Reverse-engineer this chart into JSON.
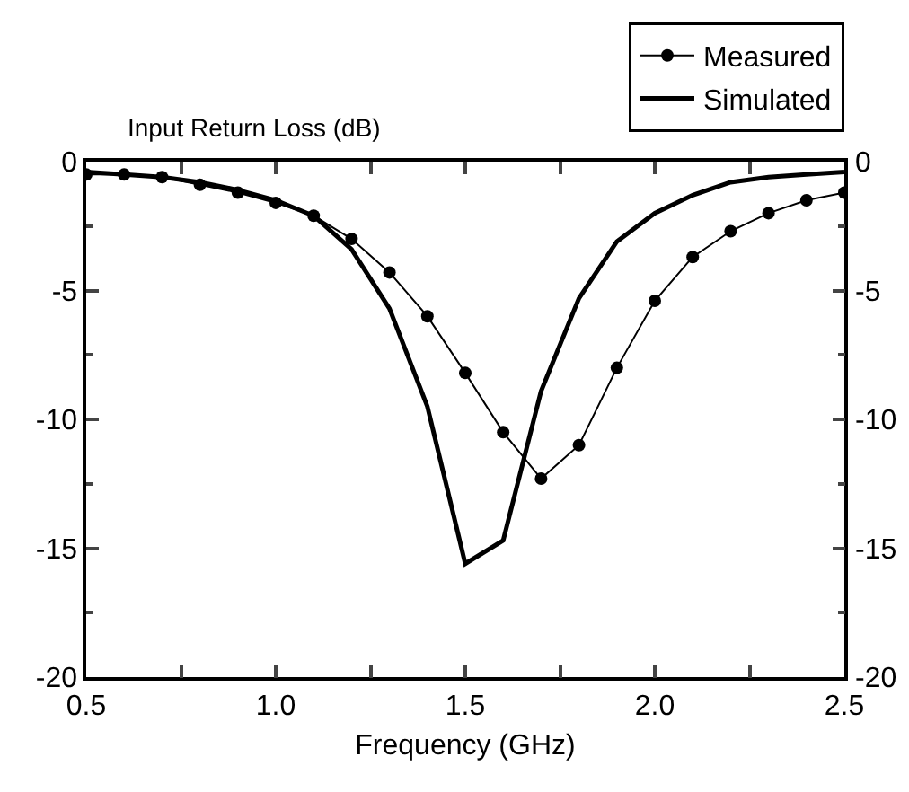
{
  "chart_data": {
    "type": "line",
    "ylabel": "Input Return Loss (dB)",
    "xlabel": "Frequency (GHz)",
    "x": [
      0.5,
      0.6,
      0.7,
      0.8,
      0.9,
      1.0,
      1.1,
      1.2,
      1.3,
      1.4,
      1.5,
      1.6,
      1.7,
      1.8,
      1.9,
      2.0,
      2.1,
      2.2,
      2.3,
      2.4,
      2.5
    ],
    "series": [
      {
        "name": "Measured",
        "color": "#000000",
        "marker": "circle",
        "line_style": "solid",
        "values": [
          -0.5,
          -0.5,
          -0.6,
          -0.9,
          -1.2,
          -1.6,
          -2.1,
          -3.0,
          -4.3,
          -6.0,
          -8.2,
          -10.5,
          -12.3,
          -11.0,
          -8.0,
          -5.4,
          -3.7,
          -2.7,
          -2.0,
          -1.5,
          -1.2
        ]
      },
      {
        "name": "Simulated",
        "color": "#000000",
        "marker": "none",
        "line_style": "solid",
        "values": [
          -0.4,
          -0.5,
          -0.6,
          -0.8,
          -1.1,
          -1.5,
          -2.1,
          -3.4,
          -5.7,
          -9.5,
          -15.6,
          -14.7,
          -8.9,
          -5.3,
          -3.1,
          -2.0,
          -1.3,
          -0.8,
          -0.6,
          -0.5,
          -0.4
        ]
      }
    ],
    "xlim": [
      0.5,
      2.5
    ],
    "xticks": [
      0.5,
      {
        "value": 1,
        "label": "1.0"
      },
      1.5,
      {
        "value": 2,
        "label": "2.0"
      },
      2.5
    ],
    "ylim": [
      -20,
      0
    ],
    "yticks": [
      -20,
      -15,
      -10,
      -5,
      0
    ],
    "y2lim": [
      -20,
      0
    ],
    "y2ticks": [
      -20,
      -15,
      -10,
      -5,
      0
    ],
    "grid": false,
    "legend": "top right"
  }
}
